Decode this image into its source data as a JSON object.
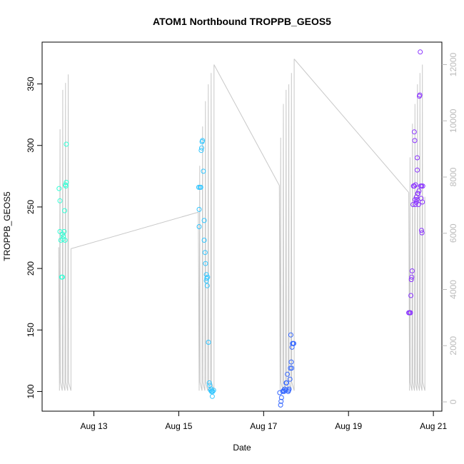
{
  "chart_data": {
    "type": "scatter",
    "title": "ATOM1 Northbound TROPPB_GEOS5",
    "xlabel": "Date",
    "ylabel": "TROPPB_GEOS5",
    "x_ticks": [
      {
        "value": 13,
        "label": "Aug 13"
      },
      {
        "value": 15,
        "label": "Aug 15"
      },
      {
        "value": 17,
        "label": "Aug 17"
      },
      {
        "value": 19,
        "label": "Aug 19"
      },
      {
        "value": 21,
        "label": "Aug 21"
      }
    ],
    "y_ticks": [
      100,
      150,
      200,
      250,
      300,
      350
    ],
    "y2_ticks": [
      0,
      2000,
      4000,
      6000,
      8000,
      10000,
      12000
    ],
    "xlim": [
      11.78,
      21.2
    ],
    "ylim": [
      84,
      384
    ],
    "y2lim": [
      -330,
      12800
    ],
    "grid": false,
    "series": [
      {
        "color": "#33ffd6",
        "points": [
          [
            12.18,
            265
          ],
          [
            12.2,
            255
          ],
          [
            12.2,
            230
          ],
          [
            12.22,
            223
          ],
          [
            12.24,
            193
          ],
          [
            12.26,
            193
          ],
          [
            12.26,
            228
          ],
          [
            12.27,
            224
          ],
          [
            12.28,
            226
          ],
          [
            12.3,
            230
          ],
          [
            12.31,
            247
          ],
          [
            12.32,
            223
          ],
          [
            12.33,
            268
          ],
          [
            12.34,
            267
          ],
          [
            12.35,
            270
          ],
          [
            12.35,
            301
          ]
        ]
      },
      {
        "color": "#33c6ff",
        "points": [
          [
            15.47,
            266
          ],
          [
            15.48,
            248
          ],
          [
            15.48,
            234
          ],
          [
            15.5,
            266
          ],
          [
            15.52,
            266
          ],
          [
            15.53,
            296
          ],
          [
            15.54,
            298
          ],
          [
            15.55,
            303
          ],
          [
            15.56,
            304
          ],
          [
            15.58,
            279
          ],
          [
            15.6,
            239
          ],
          [
            15.6,
            223
          ],
          [
            15.62,
            213
          ],
          [
            15.63,
            204
          ],
          [
            15.65,
            195
          ],
          [
            15.65,
            190
          ],
          [
            15.66,
            192
          ],
          [
            15.67,
            186
          ],
          [
            15.68,
            193
          ],
          [
            15.7,
            140
          ],
          [
            15.72,
            107
          ],
          [
            15.73,
            105
          ],
          [
            15.75,
            101
          ],
          [
            15.76,
            102
          ],
          [
            15.77,
            100
          ],
          [
            15.78,
            100
          ],
          [
            15.79,
            96
          ],
          [
            15.8,
            100
          ],
          [
            15.82,
            101
          ]
        ]
      },
      {
        "color": "#3366ff",
        "points": [
          [
            17.38,
            99
          ],
          [
            17.4,
            89
          ],
          [
            17.41,
            92
          ],
          [
            17.42,
            95
          ],
          [
            17.45,
            100
          ],
          [
            17.47,
            101
          ],
          [
            17.48,
            100
          ],
          [
            17.5,
            102
          ],
          [
            17.52,
            101
          ],
          [
            17.53,
            107
          ],
          [
            17.54,
            107
          ],
          [
            17.56,
            114
          ],
          [
            17.58,
            100
          ],
          [
            17.59,
            101
          ],
          [
            17.6,
            102
          ],
          [
            17.62,
            110
          ],
          [
            17.63,
            119
          ],
          [
            17.64,
            146
          ],
          [
            17.65,
            124
          ],
          [
            17.66,
            119
          ],
          [
            17.67,
            136
          ],
          [
            17.68,
            139
          ],
          [
            17.7,
            139
          ],
          [
            17.71,
            139
          ]
        ]
      },
      {
        "color": "#8a33ff",
        "points": [
          [
            20.42,
            164
          ],
          [
            20.44,
            164
          ],
          [
            20.46,
            164
          ],
          [
            20.47,
            178
          ],
          [
            20.48,
            191
          ],
          [
            20.49,
            193
          ],
          [
            20.5,
            198
          ],
          [
            20.52,
            252
          ],
          [
            20.53,
            267
          ],
          [
            20.55,
            267
          ],
          [
            20.55,
            311
          ],
          [
            20.56,
            304
          ],
          [
            20.57,
            256
          ],
          [
            20.58,
            268
          ],
          [
            20.58,
            252
          ],
          [
            20.6,
            258
          ],
          [
            20.6,
            254
          ],
          [
            20.61,
            256
          ],
          [
            20.62,
            290
          ],
          [
            20.62,
            280
          ],
          [
            20.63,
            261
          ],
          [
            20.64,
            261
          ],
          [
            20.65,
            252
          ],
          [
            20.66,
            263
          ],
          [
            20.67,
            340
          ],
          [
            20.68,
            341
          ],
          [
            20.69,
            376
          ],
          [
            20.7,
            267
          ],
          [
            20.71,
            257
          ],
          [
            20.72,
            231
          ],
          [
            20.73,
            229
          ],
          [
            20.74,
            254
          ],
          [
            20.75,
            267
          ],
          [
            20.72,
            267
          ]
        ]
      }
    ],
    "altitude_line_color": "#c8c8c8",
    "altitude_flights": [
      {
        "t0": 12.17,
        "t1": 12.46,
        "start": 5500,
        "end": 5450,
        "peaks": [
          9700,
          11100,
          11350,
          11650
        ]
      },
      {
        "t0": 15.46,
        "t1": 15.83,
        "start": 6750,
        "end": 12000,
        "peaks": [
          8400,
          9800,
          10700,
          11300,
          11700
        ]
      },
      {
        "t0": 17.37,
        "t1": 17.72,
        "start": 7700,
        "end": 12200,
        "peaks": [
          9400,
          10600,
          11100,
          11300,
          11700
        ]
      },
      {
        "t0": 20.42,
        "t1": 20.8,
        "start": 7450,
        "end": 7300,
        "peaks": [
          8700,
          9900,
          10600,
          11300,
          11700,
          12000
        ]
      }
    ],
    "altitude_transits": [
      {
        "from": [
          12.46,
          5450
        ],
        "to": [
          15.46,
          6750
        ]
      },
      {
        "from": [
          15.83,
          12000
        ],
        "to": [
          17.37,
          7700
        ]
      },
      {
        "from": [
          17.72,
          12200
        ],
        "to": [
          20.42,
          7450
        ]
      }
    ]
  }
}
